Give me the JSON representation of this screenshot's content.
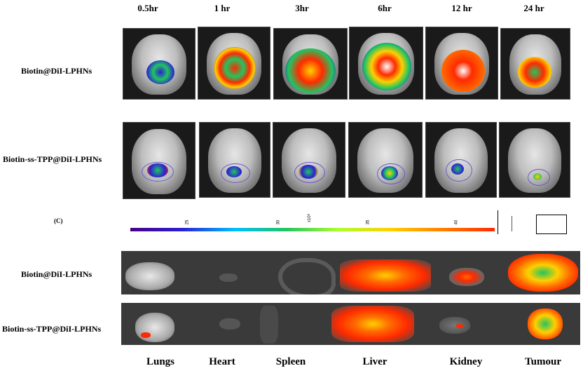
{
  "panel_c_label": "(C)",
  "time_points": [
    "0.5hr",
    "1 hr",
    "3hr",
    "6hr",
    "12 hr",
    "24 hr"
  ],
  "groups": [
    "Biotin@DiI-LPHNs",
    "Biotin-ss-TPP@DiI-LPHNs"
  ],
  "organ_groups": [
    "Biotin@DiI-LPHNs",
    "Biotin-ss-TPP@DiI-LPHNs"
  ],
  "organs": [
    "Lungs",
    "Heart",
    "Spleen",
    "Liver",
    "Kidney",
    "Tumour"
  ],
  "colorbar": {
    "ticks": [
      "25",
      "30",
      "35",
      "40"
    ],
    "exponent": "x10⁸"
  },
  "colors": {
    "heat_low": "#2a1fd6",
    "heat_mid": "#22c55e",
    "heat_high": "#ff2a00",
    "roi": "#6a5acd"
  }
}
